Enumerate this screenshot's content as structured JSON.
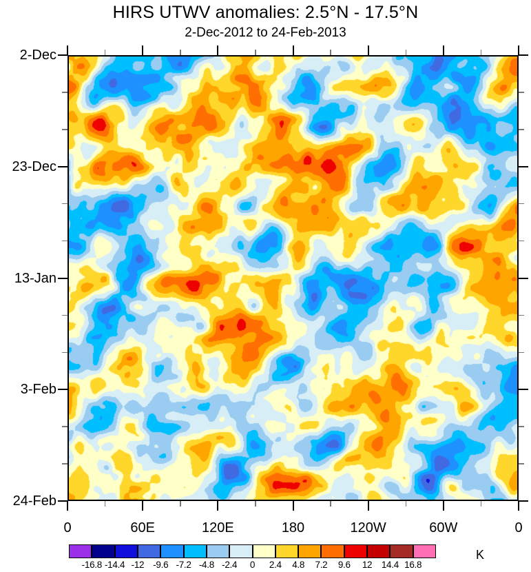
{
  "chart_data": {
    "type": "heatmap",
    "title": "HIRS UTWV anomalies: 2.5°N - 17.5°N",
    "subtitle": "2-Dec-2012 to 24-Feb-2013",
    "unit": "K",
    "x_axis": {
      "range_deg": [
        0,
        360
      ],
      "minor_tick_step_deg": 30,
      "major_ticks": [
        {
          "deg": 0,
          "label": "0"
        },
        {
          "deg": 60,
          "label": "60E"
        },
        {
          "deg": 120,
          "label": "120E"
        },
        {
          "deg": 180,
          "label": "180"
        },
        {
          "deg": 240,
          "label": "120W"
        },
        {
          "deg": 300,
          "label": "60W"
        },
        {
          "deg": 360,
          "label": "0"
        }
      ]
    },
    "y_axis": {
      "range_weeks": [
        0,
        12
      ],
      "minor_tick_step_weeks": 1,
      "major_ticks": [
        {
          "week": 0,
          "label": "2-Dec"
        },
        {
          "week": 3,
          "label": "23-Dec"
        },
        {
          "week": 6,
          "label": "13-Jan"
        },
        {
          "week": 9,
          "label": "3-Feb"
        },
        {
          "week": 12,
          "label": "24-Feb"
        }
      ]
    },
    "colorbar": {
      "levels": [
        -16.8,
        -14.4,
        -12,
        -9.6,
        -7.2,
        -4.8,
        -2.4,
        0,
        2.4,
        4.8,
        7.2,
        9.6,
        12,
        14.4,
        16.8
      ],
      "labels": [
        "-16.8",
        "-14.4",
        "-12",
        "-9.6",
        "-7.2",
        "-4.8",
        "-2.4",
        "0",
        "2.4",
        "4.8",
        "7.2",
        "9.6",
        "12",
        "14.4",
        "16.8"
      ],
      "colors": [
        "#9B2FE8",
        "#00008C",
        "#1010DC",
        "#4169E1",
        "#1E90FF",
        "#00BFFF",
        "#99CCF0",
        "#D8EEF7",
        "#FFFFC8",
        "#FFD72B",
        "#FFA500",
        "#FF6E00",
        "#EE0000",
        "#C40000",
        "#A42A24",
        "#FF6FB5"
      ],
      "unit": "K"
    },
    "field": {
      "seed": 77,
      "scale_k": 8.2,
      "octaves": [
        {
          "cell": 130,
          "amp": 0.4,
          "shear": 0.15
        },
        {
          "cell": 58,
          "amp": 1.0,
          "shear": 0.5
        },
        {
          "cell": 29,
          "amp": 0.55,
          "shear": -0.3
        },
        {
          "cell": 14.5,
          "amp": 0.28,
          "shear": 0.1
        }
      ]
    }
  }
}
